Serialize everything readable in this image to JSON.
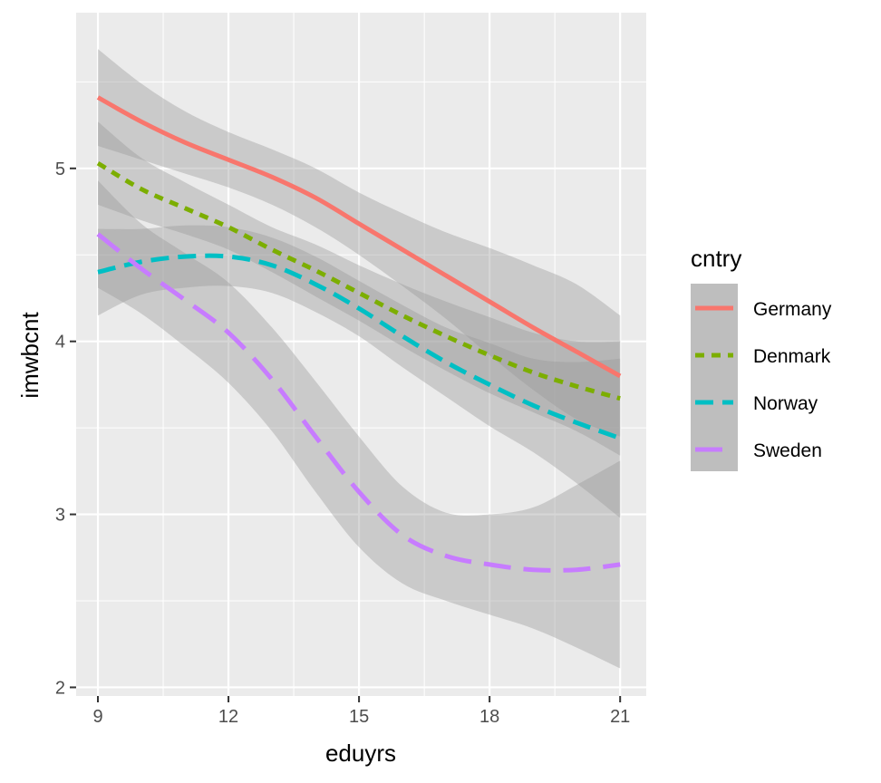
{
  "chart_data": {
    "type": "line",
    "title": "",
    "xlabel": "eduyrs",
    "ylabel": "imwbcnt",
    "xlim": [
      8.5,
      21.6
    ],
    "ylim": [
      1.95,
      5.9
    ],
    "xticks": [
      9,
      12,
      15,
      18,
      21
    ],
    "yticks": [
      2,
      3,
      4,
      5
    ],
    "x_tick_labels": [
      "9",
      "12",
      "15",
      "18",
      "21"
    ],
    "y_tick_labels": [
      "2",
      "3",
      "4",
      "5"
    ],
    "grid": true,
    "legend": {
      "title": "cntry",
      "position": "right"
    },
    "confidence_bands": true,
    "series": [
      {
        "name": "Germany",
        "color": "#F8766D",
        "dash": "solid",
        "x": [
          9,
          10,
          11,
          12,
          13,
          14,
          15,
          16,
          17,
          18,
          19,
          20,
          21
        ],
        "y": [
          5.41,
          5.27,
          5.15,
          5.05,
          4.95,
          4.83,
          4.68,
          4.53,
          4.38,
          4.23,
          4.08,
          3.94,
          3.8
        ],
        "lower": [
          5.13,
          5.05,
          4.97,
          4.89,
          4.79,
          4.66,
          4.5,
          4.32,
          4.13,
          3.92,
          3.72,
          3.55,
          3.45
        ],
        "upper": [
          5.69,
          5.49,
          5.33,
          5.21,
          5.11,
          5.0,
          4.86,
          4.74,
          4.63,
          4.54,
          4.44,
          4.33,
          4.15
        ]
      },
      {
        "name": "Denmark",
        "color": "#7CAE00",
        "dash": "short",
        "x": [
          9,
          10,
          11,
          12,
          13,
          14,
          15,
          16,
          17,
          18,
          19,
          20,
          21
        ],
        "y": [
          5.03,
          4.88,
          4.77,
          4.66,
          4.53,
          4.41,
          4.28,
          4.15,
          4.03,
          3.92,
          3.82,
          3.74,
          3.67
        ],
        "lower": [
          4.79,
          4.7,
          4.62,
          4.53,
          4.4,
          4.26,
          4.12,
          3.97,
          3.83,
          3.7,
          3.59,
          3.48,
          3.34
        ],
        "upper": [
          5.27,
          5.06,
          4.92,
          4.79,
          4.66,
          4.56,
          4.44,
          4.33,
          4.23,
          4.14,
          4.05,
          4.0,
          4.0
        ]
      },
      {
        "name": "Norway",
        "color": "#00BFC4",
        "dash": "medium",
        "x": [
          9,
          10,
          11,
          12,
          13,
          14,
          15,
          16,
          17,
          18,
          19,
          20,
          21
        ],
        "y": [
          4.4,
          4.46,
          4.49,
          4.49,
          4.44,
          4.33,
          4.19,
          4.03,
          3.88,
          3.75,
          3.63,
          3.53,
          3.44
        ],
        "lower": [
          4.15,
          4.27,
          4.31,
          4.32,
          4.28,
          4.17,
          4.03,
          3.85,
          3.68,
          3.51,
          3.36,
          3.18,
          2.98
        ],
        "upper": [
          4.65,
          4.65,
          4.67,
          4.66,
          4.6,
          4.49,
          4.35,
          4.21,
          4.08,
          3.99,
          3.9,
          3.88,
          3.9
        ]
      },
      {
        "name": "Sweden",
        "color": "#C77CFF",
        "dash": "long",
        "x": [
          9,
          10,
          11,
          12,
          13,
          14,
          15,
          16,
          17,
          18,
          19,
          20,
          21
        ],
        "y": [
          4.62,
          4.42,
          4.24,
          4.05,
          3.78,
          3.45,
          3.13,
          2.88,
          2.76,
          2.71,
          2.68,
          2.68,
          2.71
        ],
        "lower": [
          4.31,
          4.16,
          3.97,
          3.76,
          3.48,
          3.13,
          2.81,
          2.6,
          2.5,
          2.42,
          2.34,
          2.23,
          2.11
        ],
        "upper": [
          4.93,
          4.68,
          4.51,
          4.34,
          4.08,
          3.77,
          3.45,
          3.16,
          3.01,
          3.0,
          3.04,
          3.17,
          3.31
        ]
      }
    ]
  }
}
